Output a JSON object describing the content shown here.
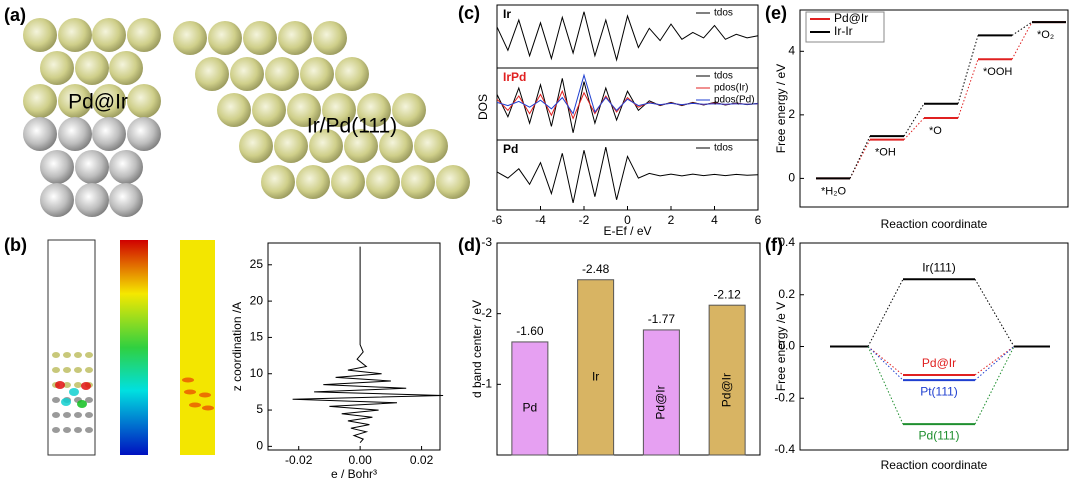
{
  "panel_labels": [
    "(a)",
    "(b)",
    "(c)",
    "(d)",
    "(e)",
    "(f)"
  ],
  "structure_labels": [
    "Pd@Ir",
    "Ir/Pd(111)"
  ],
  "chart_data": [
    {
      "type": "line",
      "xlabel": "e / Bohr³",
      "ylabel": "z coordination /A",
      "color": "#000000",
      "xlim": [
        -0.03,
        0.026
      ],
      "ylim": [
        -0.5,
        28
      ],
      "xticks": [
        -0.02,
        {
          "value": 0,
          "label": "0.00"
        },
        0.02
      ],
      "yticks": [
        0,
        5,
        10,
        15,
        20,
        25
      ],
      "y": [
        0.5,
        1,
        1.5,
        2,
        2.5,
        3,
        3.5,
        4,
        4.5,
        5,
        5.5,
        6,
        6.5,
        7,
        7.5,
        8,
        8.5,
        9,
        9.5,
        10,
        10.5,
        11,
        12,
        13,
        14,
        20,
        27.5
      ],
      "values": [
        0,
        0.001,
        -0.002,
        0.002,
        -0.003,
        0.003,
        -0.004,
        0.004,
        -0.006,
        0.006,
        -0.01,
        0.012,
        -0.022,
        0.027,
        -0.015,
        0.015,
        -0.012,
        0.01,
        -0.008,
        0.007,
        -0.004,
        0.002,
        -0.001,
        0.001,
        0,
        0,
        0
      ]
    },
    {
      "type": "spectra",
      "xlabel": "E-Ef / eV",
      "ylabel": "DOS",
      "xlim": [
        -6,
        6
      ],
      "ylim": [
        -1,
        1
      ],
      "xticks": [
        -6,
        -4,
        -2,
        0,
        2,
        4,
        6
      ],
      "x": [
        -6,
        -5.5,
        -5,
        -4.5,
        -4,
        -3.5,
        -3,
        -2.5,
        -2,
        -1.5,
        -1,
        -0.5,
        0,
        0.5,
        1,
        1.5,
        2,
        2.5,
        3,
        3.5,
        4,
        4.5,
        5,
        5.5,
        6
      ],
      "panels": [
        {
          "label": "Ir",
          "label_color": "#000000",
          "series": [
            {
              "name": "tdos",
              "color": "#000000",
              "values": [
                0.35,
                -0.5,
                0.6,
                -0.7,
                0.5,
                -0.8,
                0.7,
                -0.6,
                0.9,
                -0.7,
                0.6,
                -0.85,
                0.75,
                -0.4,
                0.3,
                -0.15,
                0.45,
                -0.1,
                0.15,
                -0.05,
                0.4,
                -0.1,
                0.08,
                -0.05,
                0.03
              ]
            }
          ]
        },
        {
          "label": "IrPd",
          "label_color": "#e02020",
          "series": [
            {
              "name": "tdos",
              "color": "#000000",
              "values": [
                0.3,
                -0.4,
                0.5,
                -0.6,
                0.6,
                -0.7,
                0.8,
                -0.9,
                0.7,
                -0.6,
                0.5,
                -0.5,
                0.4,
                -0.2,
                0.1,
                -0.05,
                0.05,
                -0.05,
                0.05,
                -0.03,
                0.05,
                -0.03,
                0.03,
                -0.02,
                0.02
              ]
            },
            {
              "name": "pdos(Ir)",
              "color": "#e02020",
              "values": [
                0.15,
                -0.2,
                0.25,
                -0.3,
                0.3,
                -0.35,
                0.4,
                -0.45,
                0.35,
                -0.3,
                0.25,
                -0.25,
                0.2,
                -0.1,
                0.05,
                -0.03,
                0.03,
                -0.03,
                0.03,
                -0.02,
                0.03,
                -0.02,
                0.02,
                -0.01,
                0.01
              ]
            },
            {
              "name": "pdos(Pd)",
              "color": "#1f3fd0",
              "values": [
                0.05,
                -0.05,
                0.08,
                -0.1,
                0.12,
                -0.15,
                0.2,
                -0.3,
                0.9,
                -0.25,
                0.2,
                -0.2,
                0.15,
                -0.05,
                0.03,
                -0.02,
                0.02,
                -0.02,
                0.02,
                -0.01,
                0.01,
                -0.01,
                0.01,
                -0.01,
                0.01
              ]
            }
          ]
        },
        {
          "label": "Pd",
          "label_color": "#000000",
          "series": [
            {
              "name": "tdos",
              "color": "#000000",
              "values": [
                0.1,
                -0.1,
                0.2,
                -0.3,
                0.4,
                -0.6,
                0.7,
                -0.9,
                0.8,
                -0.7,
                0.9,
                -0.8,
                0.6,
                -0.1,
                0.05,
                -0.03,
                0.03,
                -0.03,
                0.03,
                -0.02,
                0.02,
                -0.02,
                0.02,
                -0.01,
                0.01
              ]
            }
          ]
        }
      ]
    },
    {
      "type": "bar",
      "ylabel": "d band center / eV",
      "ylim": [
        0,
        -3
      ],
      "yticks": [
        -3,
        -2,
        -1
      ],
      "categories": [
        "Pd",
        "Ir",
        "Pd@Ir",
        "Pd@Ir"
      ],
      "values": [
        -1.6,
        -2.48,
        -1.77,
        -2.12
      ],
      "value_labels": [
        "-1.60",
        "-2.48",
        "-1.77",
        "-2.12"
      ],
      "colors": [
        "#e6a0f2",
        "#d8b463",
        "#e6a0f2",
        "#d8b463"
      ]
    },
    {
      "type": "step",
      "xlabel": "Reaction coordinate",
      "ylabel": "Free energy / eV",
      "ylim": [
        -0.9,
        5.3
      ],
      "yticks": [
        0,
        2,
        4
      ],
      "legend": "upper left",
      "categories": [
        "*H₂O",
        "*OH",
        "*O",
        "*OOH",
        "*O₂"
      ],
      "series": [
        {
          "name": "Pd@Ir",
          "color": "#e02020",
          "values": [
            0,
            1.22,
            1.9,
            3.75,
            4.92
          ]
        },
        {
          "name": "Ir-Ir",
          "color": "#000000",
          "values": [
            0,
            1.33,
            2.35,
            4.5,
            4.92
          ]
        }
      ]
    },
    {
      "type": "level",
      "xlabel": "Reaction coordinate",
      "ylabel": "Free energy /e V",
      "ylim": [
        -0.4,
        0.4
      ],
      "yticks": [
        -0.4,
        -0.2,
        {
          "value": 0,
          "label": "0.0"
        },
        0.2,
        0.4
      ],
      "level_color": "#000000",
      "series": [
        {
          "name": "Ir(111)",
          "color": "#000000",
          "values": [
            0,
            0.26,
            0
          ]
        },
        {
          "name": "Pd@Ir",
          "color": "#e02020",
          "values": [
            0,
            -0.11,
            0
          ]
        },
        {
          "name": "Pt(111)",
          "color": "#1f3fd0",
          "values": [
            0,
            -0.13,
            0
          ]
        },
        {
          "name": "Pd(111)",
          "color": "#1f8f2f",
          "values": [
            0,
            -0.3,
            0
          ]
        }
      ]
    }
  ]
}
